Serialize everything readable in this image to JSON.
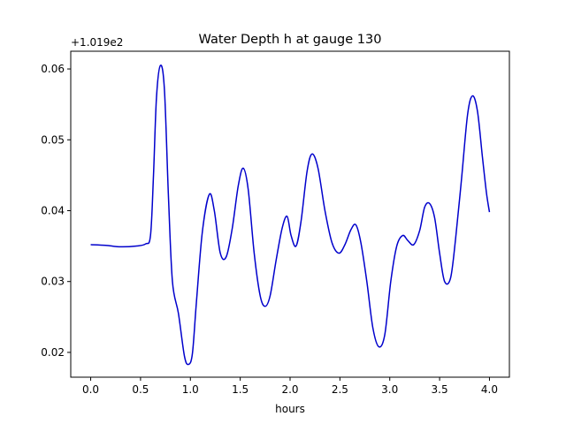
{
  "chart_data": {
    "type": "line",
    "title": "Water Depth h at gauge 130",
    "xlabel": "hours",
    "ylabel": "",
    "y_offset_label": "+1.019e2",
    "xlim": [
      -0.2,
      4.2
    ],
    "ylim": [
      0.0165,
      0.0625
    ],
    "xticks": [
      0.0,
      0.5,
      1.0,
      1.5,
      2.0,
      2.5,
      3.0,
      3.5,
      4.0
    ],
    "xtick_labels": [
      "0.0",
      "0.5",
      "1.0",
      "1.5",
      "2.0",
      "2.5",
      "3.0",
      "3.5",
      "4.0"
    ],
    "yticks": [
      0.02,
      0.03,
      0.04,
      0.05,
      0.06
    ],
    "ytick_labels": [
      "0.02",
      "0.03",
      "0.04",
      "0.05",
      "0.06"
    ],
    "grid": false,
    "series": [
      {
        "color": "#0000cc",
        "x": [
          0.0,
          0.15,
          0.3,
          0.45,
          0.55,
          0.6,
          0.63,
          0.66,
          0.7,
          0.74,
          0.78,
          0.82,
          0.88,
          0.94,
          0.98,
          1.02,
          1.06,
          1.12,
          1.19,
          1.24,
          1.3,
          1.36,
          1.42,
          1.48,
          1.53,
          1.58,
          1.64,
          1.7,
          1.75,
          1.8,
          1.86,
          1.92,
          1.97,
          2.01,
          2.06,
          2.11,
          2.17,
          2.22,
          2.28,
          2.35,
          2.42,
          2.49,
          2.55,
          2.61,
          2.66,
          2.71,
          2.77,
          2.83,
          2.89,
          2.95,
          3.01,
          3.07,
          3.13,
          3.18,
          3.24,
          3.3,
          3.35,
          3.4,
          3.45,
          3.5,
          3.55,
          3.61,
          3.66,
          3.72,
          3.78,
          3.83,
          3.88,
          3.93,
          3.97,
          4.0
        ],
        "y": [
          0.0352,
          0.0351,
          0.0349,
          0.035,
          0.0353,
          0.0365,
          0.045,
          0.056,
          0.0605,
          0.057,
          0.042,
          0.03,
          0.0255,
          0.0195,
          0.0183,
          0.0198,
          0.027,
          0.037,
          0.0423,
          0.04,
          0.034,
          0.0335,
          0.0375,
          0.0435,
          0.046,
          0.043,
          0.034,
          0.028,
          0.0265,
          0.028,
          0.033,
          0.0375,
          0.0392,
          0.0365,
          0.035,
          0.0385,
          0.0455,
          0.048,
          0.046,
          0.04,
          0.0355,
          0.034,
          0.0352,
          0.0373,
          0.038,
          0.0355,
          0.03,
          0.0235,
          0.0208,
          0.0225,
          0.03,
          0.035,
          0.0365,
          0.0358,
          0.0352,
          0.0372,
          0.0405,
          0.041,
          0.039,
          0.034,
          0.03,
          0.0305,
          0.036,
          0.0445,
          0.0535,
          0.0562,
          0.054,
          0.0475,
          0.0425,
          0.0398
        ]
      }
    ]
  }
}
